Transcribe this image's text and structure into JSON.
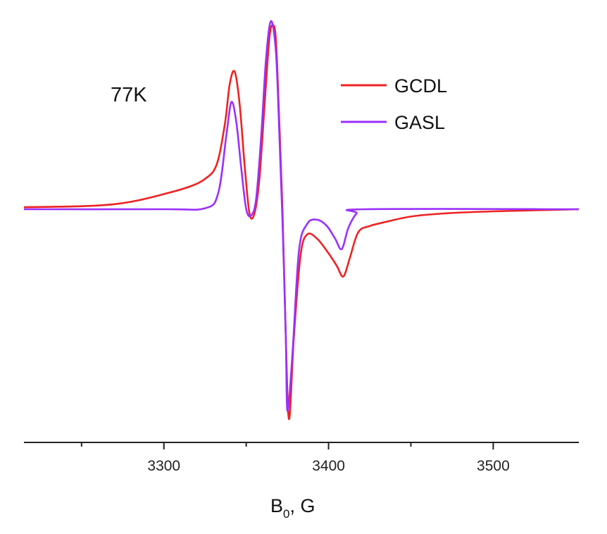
{
  "chart_data": {
    "type": "line",
    "title": "",
    "xlabel": "B",
    "xlabel_sub": "0",
    "xlabel_suffix": ", G",
    "ylabel": "",
    "xlim": [
      3215,
      3552
    ],
    "ylim": [
      -1.0,
      0.93
    ],
    "x_ticks_major": [
      3300,
      3400,
      3500
    ],
    "x_ticks_minor": [
      3250,
      3350,
      3450
    ],
    "annotation": "77K",
    "legend_position": "top-right",
    "grid": false,
    "series": [
      {
        "name": "GCDL",
        "color": "#ee2222",
        "points": [
          [
            3215,
            0.01
          ],
          [
            3250,
            0.015
          ],
          [
            3270,
            0.025
          ],
          [
            3285,
            0.045
          ],
          [
            3300,
            0.075
          ],
          [
            3315,
            0.11
          ],
          [
            3325,
            0.15
          ],
          [
            3332,
            0.22
          ],
          [
            3337,
            0.42
          ],
          [
            3340,
            0.62
          ],
          [
            3343,
            0.68
          ],
          [
            3346,
            0.52
          ],
          [
            3349,
            0.22
          ],
          [
            3352,
            -0.02
          ],
          [
            3355,
            -0.02
          ],
          [
            3358,
            0.15
          ],
          [
            3361,
            0.5
          ],
          [
            3364,
            0.84
          ],
          [
            3366,
            0.91
          ],
          [
            3368,
            0.84
          ],
          [
            3370,
            0.45
          ],
          [
            3372,
            0.0
          ],
          [
            3374,
            -0.6
          ],
          [
            3376,
            -1.0
          ],
          [
            3379,
            -0.6
          ],
          [
            3383,
            -0.22
          ],
          [
            3387,
            -0.12
          ],
          [
            3393,
            -0.14
          ],
          [
            3400,
            -0.21
          ],
          [
            3405,
            -0.27
          ],
          [
            3409,
            -0.32
          ],
          [
            3413,
            -0.23
          ],
          [
            3418,
            -0.11
          ],
          [
            3425,
            -0.08
          ],
          [
            3435,
            -0.06
          ],
          [
            3450,
            -0.035
          ],
          [
            3470,
            -0.02
          ],
          [
            3500,
            -0.01
          ],
          [
            3552,
            0.0
          ]
        ]
      },
      {
        "name": "GASL",
        "color": "#9b30ff",
        "points": [
          [
            3215,
            0.0
          ],
          [
            3300,
            0.0
          ],
          [
            3325,
            0.005
          ],
          [
            3333,
            0.08
          ],
          [
            3338,
            0.37
          ],
          [
            3341,
            0.53
          ],
          [
            3344,
            0.43
          ],
          [
            3347,
            0.2
          ],
          [
            3350,
            0.0
          ],
          [
            3353,
            -0.03
          ],
          [
            3356,
            0.05
          ],
          [
            3359,
            0.35
          ],
          [
            3362,
            0.74
          ],
          [
            3365,
            0.93
          ],
          [
            3368,
            0.78
          ],
          [
            3370,
            0.4
          ],
          [
            3372,
            -0.05
          ],
          [
            3374,
            -0.6
          ],
          [
            3375,
            -0.96
          ],
          [
            3378,
            -0.7
          ],
          [
            3382,
            -0.2
          ],
          [
            3387,
            -0.07
          ],
          [
            3393,
            -0.05
          ],
          [
            3399,
            -0.08
          ],
          [
            3404,
            -0.14
          ],
          [
            3408,
            -0.19
          ],
          [
            3412,
            -0.09
          ],
          [
            3417,
            -0.02
          ],
          [
            3422,
            0.0
          ],
          [
            3552,
            0.0
          ]
        ]
      }
    ]
  }
}
